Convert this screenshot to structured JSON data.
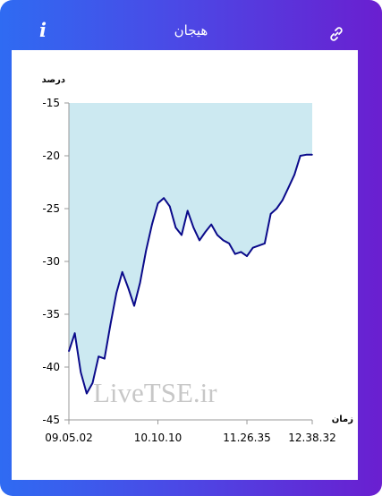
{
  "header": {
    "title": "هیجان",
    "info_icon": "info-icon",
    "link_icon": "link-icon"
  },
  "colors": {
    "gradient_start": "#2f6bf2",
    "gradient_end": "#6a1fd0",
    "area_fill": "#cce9f1",
    "line": "#0a0a8a"
  },
  "chart_data": {
    "type": "area",
    "ylabel": "درصد",
    "xlabel": "زمان",
    "ylim": [
      -45,
      -15
    ],
    "y_ticks": [
      "-15",
      "-20",
      "-25",
      "-30",
      "-35",
      "-40",
      "-45"
    ],
    "x_ticks": [
      "09.05.02",
      "10.10.10",
      "11.26.35",
      "12.38.32"
    ],
    "watermark": "LiveTSE.ir",
    "x": [
      "09.05.02",
      "09.09",
      "09.13",
      "09.17",
      "09.22",
      "09.26",
      "09.30",
      "09.35",
      "09.39",
      "09.43",
      "09.47",
      "09.52",
      "09.56",
      "10.00",
      "10.05",
      "10.10.10",
      "10.15",
      "10.20",
      "10.25",
      "10.30",
      "10.35",
      "10.40",
      "10.45",
      "10.50",
      "10.55",
      "11.00",
      "11.05",
      "11.10",
      "11.15",
      "11.20",
      "11.26.35",
      "11.32",
      "11.38",
      "11.45",
      "11.52",
      "11.59",
      "12.06",
      "12.13",
      "12.20",
      "12.27",
      "12.33",
      "12.38.32"
    ],
    "values": [
      -38.5,
      -36.8,
      -40.5,
      -42.5,
      -41.5,
      -39,
      -39.2,
      -36,
      -33,
      -31,
      -32.5,
      -34.2,
      -32,
      -29,
      -26.5,
      -24.5,
      -24,
      -24.8,
      -26.8,
      -27.5,
      -25.2,
      -26.8,
      -28,
      -27.2,
      -26.5,
      -27.5,
      -28,
      -28.3,
      -29.3,
      -29.1,
      -29.5,
      -28.7,
      -28.5,
      -28.3,
      -25.5,
      -25,
      -24.2,
      -23,
      -21.8,
      -20,
      -19.9,
      -19.9
    ]
  }
}
